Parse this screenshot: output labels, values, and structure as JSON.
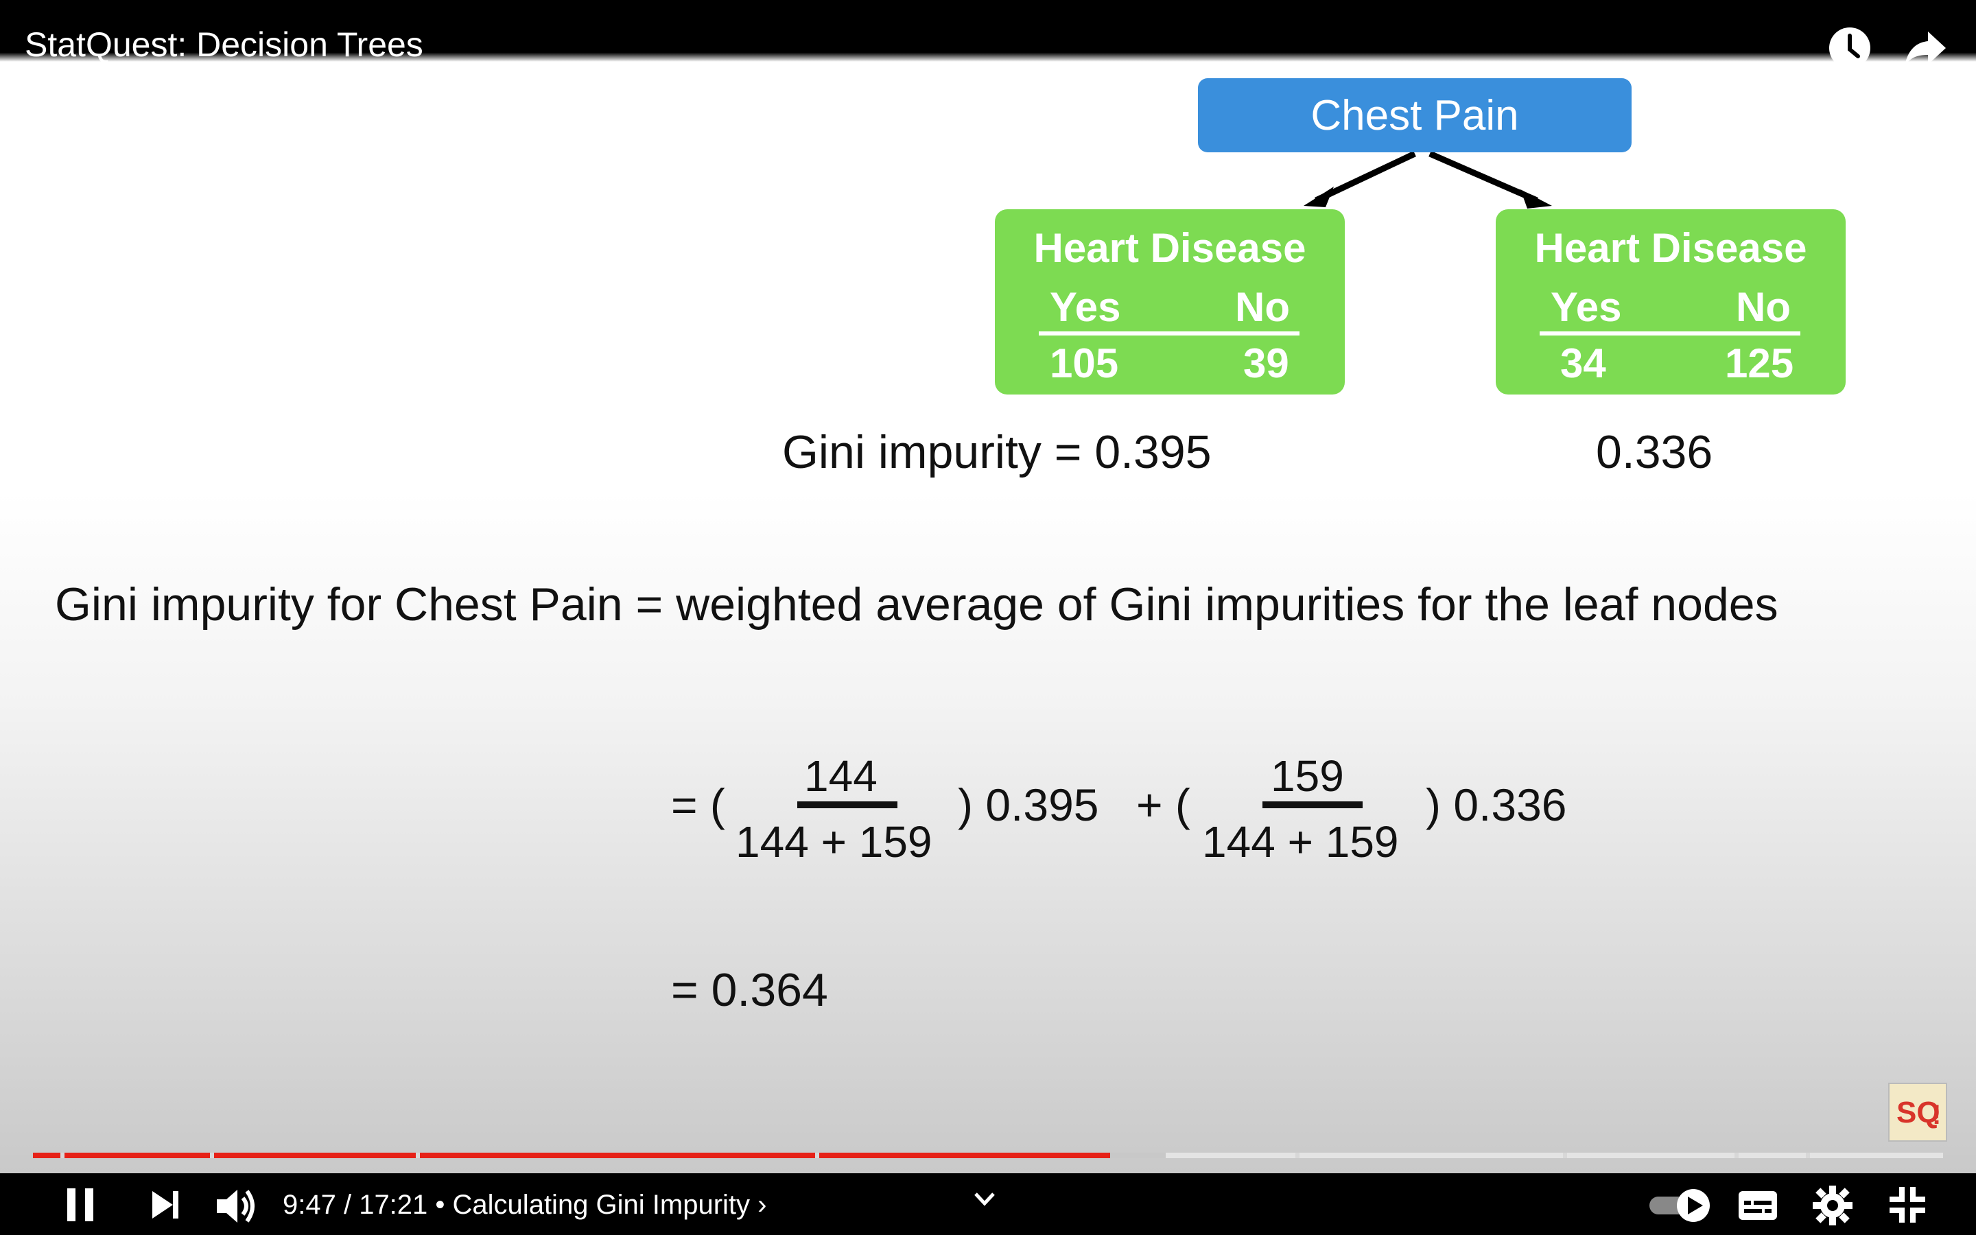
{
  "header": {
    "title": "StatQuest: Decision Trees",
    "icons": [
      "watch-later-icon",
      "share-icon"
    ]
  },
  "slide": {
    "root": "Chest Pain",
    "left_leaf": {
      "title": "Heart Disease",
      "yes_label": "Yes",
      "no_label": "No",
      "yes": "105",
      "no": "39"
    },
    "right_leaf": {
      "title": "Heart Disease",
      "yes_label": "Yes",
      "no_label": "No",
      "yes": "34",
      "no": "125"
    },
    "left_gini": "Gini impurity = 0.395",
    "right_gini": "0.336",
    "definition": "Gini impurity for Chest Pain = weighted average of Gini impurities for the leaf nodes",
    "eq_prefix": "= (",
    "frac1_num": "144",
    "frac1_den": "144 + 159",
    "term1": ") 0.395",
    "plus": "+ (",
    "frac2_num": "159",
    "frac2_den": "144 + 159",
    "term2": ") 0.336",
    "result": "= 0.364"
  },
  "player": {
    "time": "9:47 / 17:21",
    "chapter": "• Calculating Gini Impurity ›",
    "progress_fraction": 0.564,
    "buffered_fraction": 0.593,
    "colors": {
      "played": "#e62117",
      "buffered": "#c8c8c8",
      "unplayed": "#e4e4e4"
    },
    "icons": [
      "pause-icon",
      "next-icon",
      "volume-icon",
      "chevron-down-icon",
      "autoplay-toggle-icon",
      "subtitles-icon",
      "settings-icon",
      "exit-fullscreen-icon"
    ]
  }
}
